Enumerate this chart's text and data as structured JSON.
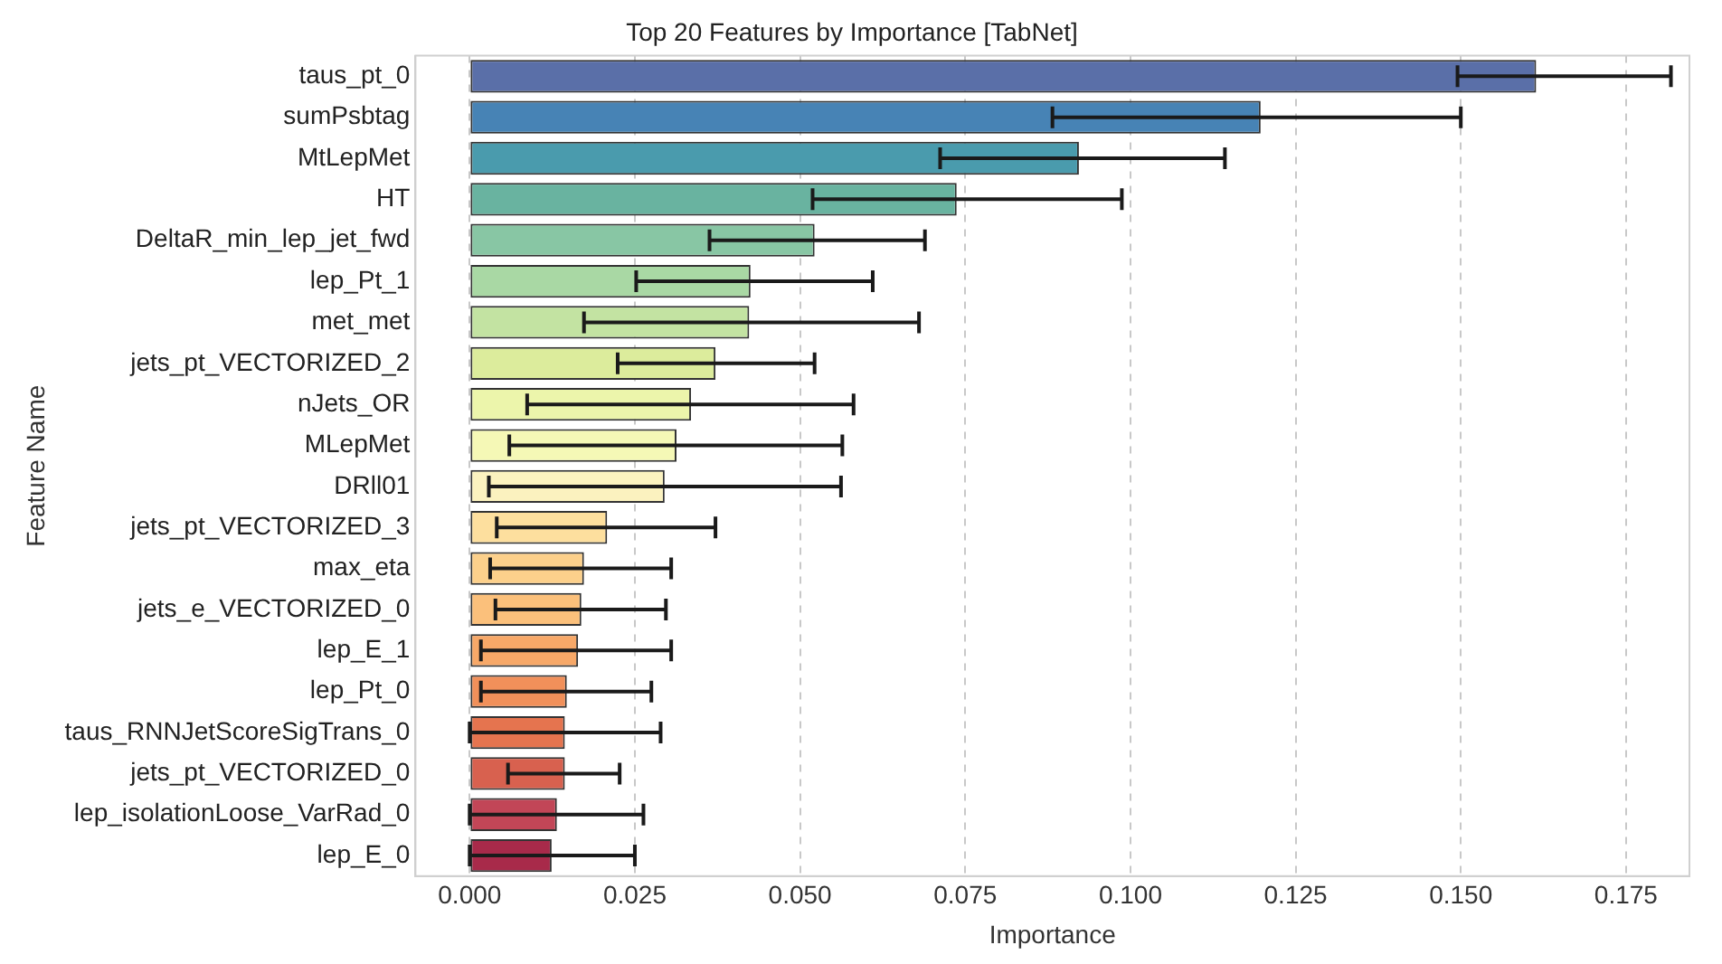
{
  "chart_data": {
    "type": "bar",
    "orientation": "horizontal",
    "title": "Top 20 Features by Importance [TabNet]",
    "xlabel": "Importance",
    "ylabel": "Feature Name",
    "categories": [
      "taus_pt_0",
      "sumPsbtag",
      "MtLepMet",
      "HT",
      "DeltaR_min_lep_jet_fwd",
      "lep_Pt_1",
      "met_met",
      "jets_pt_VECTORIZED_2",
      "nJets_OR",
      "MLepMet",
      "DRll01",
      "jets_pt_VECTORIZED_3",
      "max_eta",
      "jets_e_VECTORIZED_0",
      "lep_E_1",
      "lep_Pt_0",
      "taus_RNNJetScoreSigTrans_0",
      "jets_pt_VECTORIZED_0",
      "lep_isolationLoose_VarRad_0",
      "lep_E_0"
    ],
    "values": [
      0.1614,
      0.1197,
      0.0922,
      0.0737,
      0.0522,
      0.0425,
      0.0423,
      0.0372,
      0.0335,
      0.0313,
      0.0295,
      0.0208,
      0.0173,
      0.0169,
      0.0164,
      0.0147,
      0.0144,
      0.0144,
      0.0132,
      0.0124
    ],
    "errors": [
      [
        0.1495,
        0.1818
      ],
      [
        0.0882,
        0.15
      ],
      [
        0.0712,
        0.1143
      ],
      [
        0.0519,
        0.0987
      ],
      [
        0.0363,
        0.0689
      ],
      [
        0.0252,
        0.061
      ],
      [
        0.0173,
        0.068
      ],
      [
        0.0224,
        0.0522
      ],
      [
        0.0087,
        0.0581
      ],
      [
        0.006,
        0.0564
      ],
      [
        0.0029,
        0.0562
      ],
      [
        0.0041,
        0.0372
      ],
      [
        0.0031,
        0.0305
      ],
      [
        0.0039,
        0.0297
      ],
      [
        0.0017,
        0.0305
      ],
      [
        0.0017,
        0.0275
      ],
      [
        0.0,
        0.0289
      ],
      [
        0.0058,
        0.0227
      ],
      [
        0.0,
        0.0263
      ],
      [
        0.0,
        0.025
      ]
    ],
    "colors": [
      "#5a6fa8",
      "#4783b5",
      "#4a9bad",
      "#69b3a0",
      "#88c6a4",
      "#a9d8a4",
      "#c3e3a2",
      "#dcec9c",
      "#ecf5ab",
      "#f5f8b6",
      "#fbf2bf",
      "#fddf9e",
      "#fcd08b",
      "#fbc07b",
      "#f7a868",
      "#f1905a",
      "#e5744f",
      "#d8614f",
      "#c24657",
      "#a82a4a"
    ],
    "xlim": [
      -0.0082,
      0.1846
    ],
    "xticks": [
      {
        "value": 0,
        "label": "0.000"
      },
      {
        "value": 0.025,
        "label": "0.025"
      },
      {
        "value": 0.05,
        "label": "0.050"
      },
      {
        "value": 0.075,
        "label": "0.075"
      },
      {
        "value": 0.1,
        "label": "0.100"
      },
      {
        "value": 0.125,
        "label": "0.125"
      },
      {
        "value": 0.15,
        "label": "0.150"
      },
      {
        "value": 0.175,
        "label": "0.175"
      }
    ],
    "grid": "x",
    "legend": false
  }
}
